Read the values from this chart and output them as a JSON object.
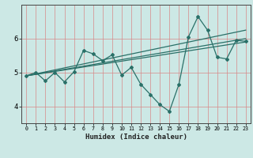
{
  "xlabel": "Humidex (Indice chaleur)",
  "bg_color": "#cce8e5",
  "line_color": "#2a7068",
  "grid_color_v": "#e8a0a0",
  "grid_color_h": "#e8a0a0",
  "xlim": [
    -0.5,
    23.5
  ],
  "ylim": [
    3.5,
    7.0
  ],
  "yticks": [
    4,
    5,
    6
  ],
  "xticks": [
    0,
    1,
    2,
    3,
    4,
    5,
    6,
    7,
    8,
    9,
    10,
    11,
    12,
    13,
    14,
    15,
    16,
    17,
    18,
    19,
    20,
    21,
    22,
    23
  ],
  "lines": [
    {
      "x": [
        0,
        1,
        2,
        3,
        4,
        5,
        6,
        7,
        8,
        9,
        10,
        11,
        12,
        13,
        14,
        15,
        16,
        17,
        18,
        19,
        20,
        21,
        22,
        23
      ],
      "y": [
        4.9,
        5.0,
        4.75,
        5.0,
        4.72,
        5.02,
        5.65,
        5.55,
        5.35,
        5.52,
        4.92,
        5.15,
        4.65,
        4.35,
        4.05,
        3.85,
        4.65,
        6.05,
        6.65,
        6.25,
        5.45,
        5.4,
        5.95,
        5.92
      ]
    },
    {
      "x": [
        0,
        23
      ],
      "y": [
        4.9,
        5.9
      ]
    },
    {
      "x": [
        0,
        23
      ],
      "y": [
        4.9,
        6.0
      ]
    },
    {
      "x": [
        0,
        23
      ],
      "y": [
        4.9,
        6.25
      ]
    }
  ]
}
